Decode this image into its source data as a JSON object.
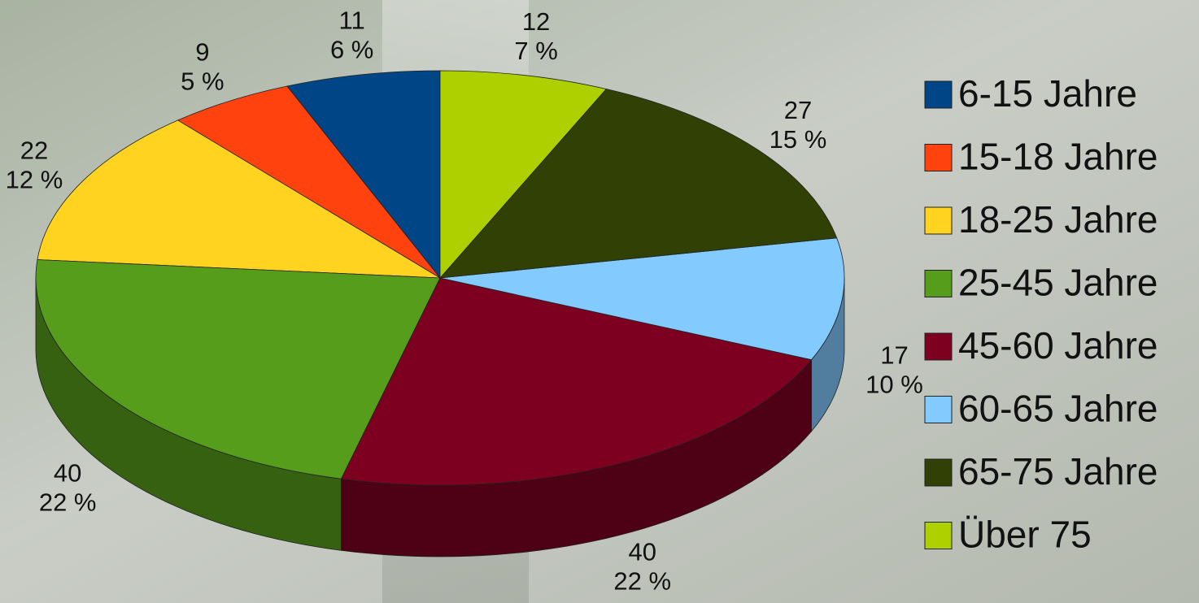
{
  "chart_data": {
    "type": "pie3d",
    "categories": [
      "6-15 Jahre",
      "15-18 Jahre",
      "18-25 Jahre",
      "25-45 Jahre",
      "45-60 Jahre",
      "60-65 Jahre",
      "65-75 Jahre",
      "Über 75"
    ],
    "values": [
      11,
      9,
      22,
      40,
      40,
      17,
      27,
      12
    ],
    "percent_labels": [
      "6 %",
      "5 %",
      "12 %",
      "22 %",
      "22 %",
      "10 %",
      "15 %",
      "7 %"
    ],
    "colors": [
      "#004586",
      "#ff420e",
      "#ffd320",
      "#579d1c",
      "#7e0021",
      "#83caff",
      "#314004",
      "#aecf00"
    ],
    "legend": "right"
  }
}
